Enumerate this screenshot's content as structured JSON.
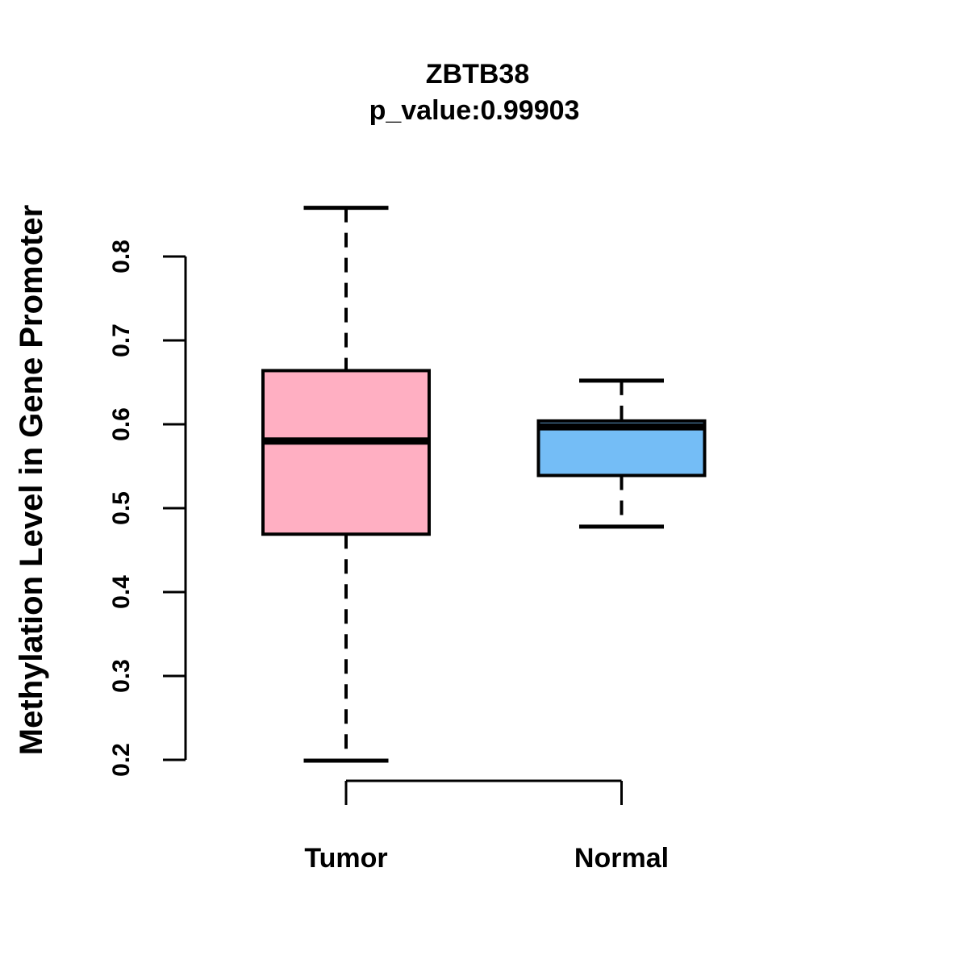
{
  "title": {
    "gene": "ZBTB38",
    "pvalue_line": "p_value:0.99903"
  },
  "axes": {
    "y_label": "Methylation Level in Gene Promoter",
    "y_tick_labels": [
      "0.2",
      "0.3",
      "0.4",
      "0.5",
      "0.6",
      "0.7",
      "0.8"
    ]
  },
  "chart_data": {
    "type": "boxplot",
    "title": "ZBTB38",
    "subtitle": "p_value:0.99903",
    "ylabel": "Methylation Level in Gene Promoter",
    "xlabel": "",
    "categories": [
      "Tumor",
      "Normal"
    ],
    "yticks": [
      0.2,
      0.3,
      0.4,
      0.5,
      0.6,
      0.7,
      0.8
    ],
    "ylim": [
      0.2,
      0.86
    ],
    "grid": false,
    "legend": "none",
    "groups": [
      {
        "label": "Tumor",
        "color": "#FFAFC2",
        "stats": {
          "whisker_low": 0.199,
          "q1": 0.469,
          "median": 0.58,
          "q3": 0.664,
          "whisker_high": 0.858
        }
      },
      {
        "label": "Normal",
        "color": "#74BDF6",
        "stats": {
          "whisker_low": 0.478,
          "q1": 0.539,
          "median": 0.597,
          "q3": 0.604,
          "whisker_high": 0.652
        }
      }
    ]
  },
  "colors": {
    "stroke": "#000000",
    "background": "#FFFFFF",
    "tumor_fill": "#FFAFC2",
    "normal_fill": "#74BDF6"
  }
}
